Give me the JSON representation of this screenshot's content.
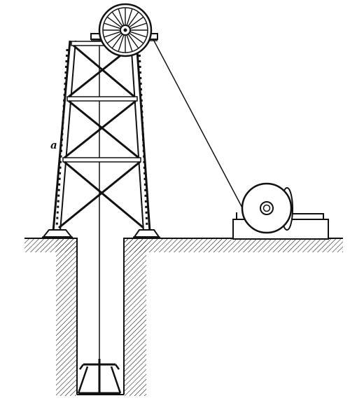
{
  "labels": {
    "a": "a"
  },
  "colors": {
    "ink": "#111111",
    "paper": "#ffffff"
  }
}
